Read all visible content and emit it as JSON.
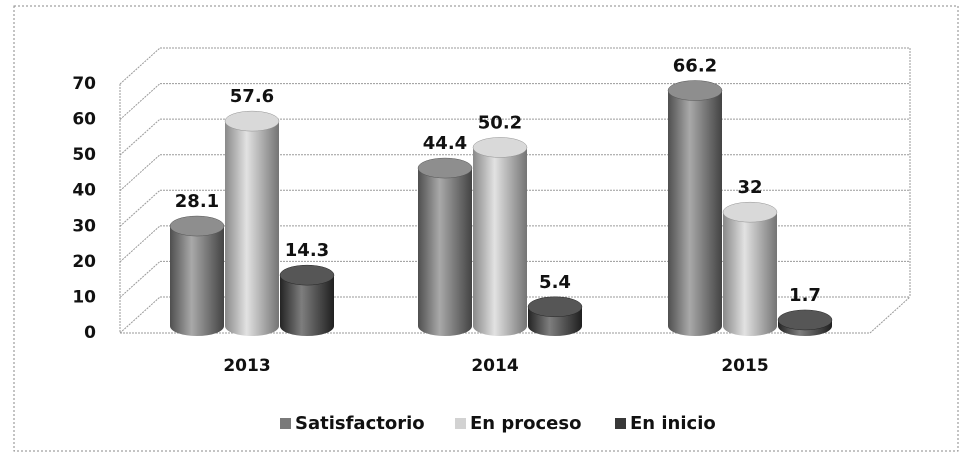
{
  "chart_data": {
    "type": "bar",
    "categories": [
      "2013",
      "2014",
      "2015"
    ],
    "series": [
      {
        "name": "Satisfactorio",
        "color": "#7a7a7a",
        "values": [
          28.1,
          44.4,
          66.2
        ]
      },
      {
        "name": "En proceso",
        "color": "#d2d2d2",
        "values": [
          57.6,
          50.2,
          32
        ]
      },
      {
        "name": "En inicio",
        "color": "#383838",
        "values": [
          14.3,
          5.4,
          1.7
        ]
      }
    ],
    "ylim": [
      0,
      70
    ],
    "yticks": [
      0,
      10,
      20,
      30,
      40,
      50,
      60,
      70
    ],
    "grid": true,
    "legend": "bottom"
  }
}
